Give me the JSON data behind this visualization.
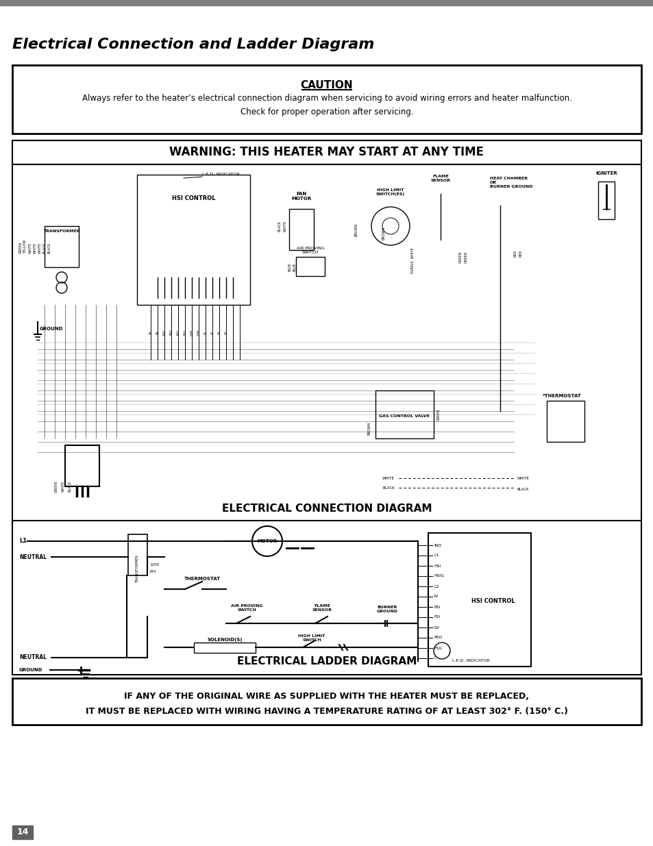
{
  "page_bg": "#ffffff",
  "title_bar_color": "#808080",
  "title_text": "Electrical Connection and Ladder Diagram",
  "title_fontsize": 16,
  "caution_title": "CAUTION",
  "caution_line1": "Always refer to the heater’s electrical connection diagram when servicing to avoid wiring errors and heater malfunction.",
  "caution_line2": "Check for proper operation after servicing.",
  "warning_text": "WARNING: THIS HEATER MAY START AT ANY TIME",
  "elec_conn_label": "ELECTRICAL CONNECTION DIAGRAM",
  "ladder_label": "ELECTRICAL LADDER DIAGRAM",
  "bottom_warning_line1": "IF ANY OF THE ORIGINAL WIRE AS SUPPLIED WITH THE HEATER MUST BE REPLACED,",
  "bottom_warning_line2": "IT MUST BE REPLACED WITH WIRING HAVING A TEMPERATURE RATING OF AT LEAST 302° F. (150° C.)",
  "page_number": "14",
  "page_number_bg": "#606060"
}
